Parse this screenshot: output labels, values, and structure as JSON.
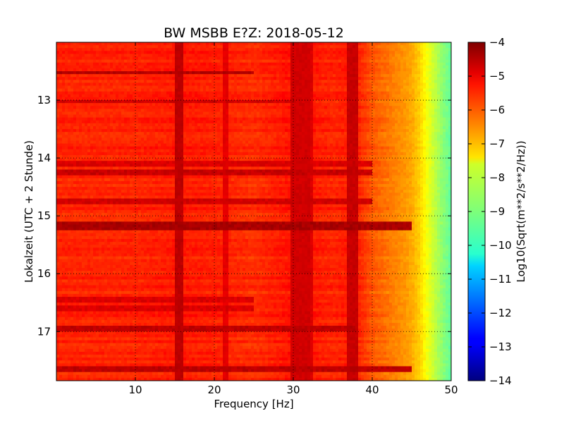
{
  "chart_data": {
    "type": "heatmap",
    "title": "BW MSBB E?Z: 2018-05-12",
    "xlabel": "Frequency [Hz]",
    "ylabel": "Lokalzeit (UTC + 2 Stunde)",
    "xlim": [
      0,
      50
    ],
    "ylim": [
      17.85,
      12.0
    ],
    "x_ticks": [
      10,
      20,
      30,
      40,
      50
    ],
    "y_ticks": [
      13,
      14,
      15,
      16,
      17
    ],
    "grid": true,
    "colormap": "jet",
    "colorbar": {
      "label": "Log10(Sqrt(m**2/s**2/Hz))",
      "range": [
        -14,
        -4
      ],
      "ticks": [
        -4,
        -5,
        -6,
        -7,
        -8,
        -9,
        -10,
        -11,
        -12,
        -13,
        -14
      ]
    },
    "base_spectrum": {
      "frequency_hz": [
        0,
        5,
        10,
        15,
        20,
        25,
        30,
        35,
        38,
        40,
        42,
        44,
        45,
        46,
        47,
        48,
        49,
        50
      ],
      "value": [
        -5.6,
        -5.6,
        -5.6,
        -5.5,
        -5.55,
        -5.7,
        -5.4,
        -5.6,
        -5.5,
        -6.1,
        -6.4,
        -6.7,
        -6.9,
        -7.3,
        -7.9,
        -8.4,
        -8.9,
        -9.3
      ]
    },
    "vertical_bands_hz": [
      {
        "center": 15.6,
        "width": 0.6,
        "value": -4.6
      },
      {
        "center": 21.5,
        "width": 0.4,
        "value": -5.0
      },
      {
        "center": 31.0,
        "width": 1.2,
        "value": -4.8
      },
      {
        "center": 32.0,
        "width": 0.5,
        "value": -4.9
      },
      {
        "center": 37.6,
        "width": 0.7,
        "value": -4.7
      }
    ],
    "horizontal_bands_hour": [
      {
        "center": 12.52,
        "width": 0.04,
        "fmax": 25,
        "value": -4.5
      },
      {
        "center": 13.02,
        "width": 0.04,
        "fmax": 30,
        "value": -4.8
      },
      {
        "center": 14.1,
        "width": 0.04,
        "fmax": 40,
        "value": -4.9
      },
      {
        "center": 14.25,
        "width": 0.05,
        "fmax": 40,
        "value": -4.7
      },
      {
        "center": 14.75,
        "width": 0.04,
        "fmax": 40,
        "value": -4.8
      },
      {
        "center": 15.18,
        "width": 0.06,
        "fmax": 45,
        "value": -4.4
      },
      {
        "center": 16.45,
        "width": 0.04,
        "fmax": 25,
        "value": -4.9
      },
      {
        "center": 16.6,
        "width": 0.04,
        "fmax": 25,
        "value": -4.9
      },
      {
        "center": 16.95,
        "width": 0.05,
        "fmax": 38,
        "value": -4.6
      },
      {
        "center": 17.65,
        "width": 0.04,
        "fmax": 45,
        "value": -4.6
      }
    ]
  }
}
